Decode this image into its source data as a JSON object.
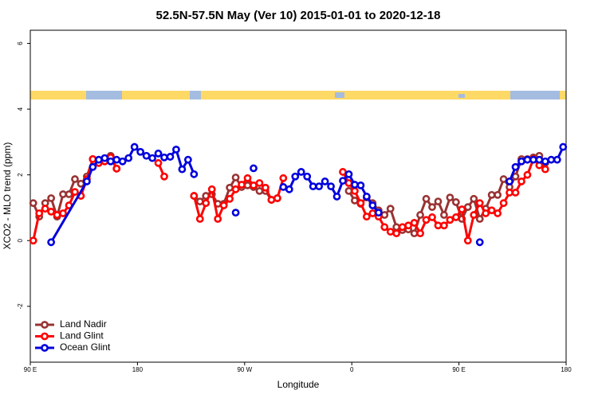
{
  "chart_data": {
    "type": "line",
    "title": "52.5N-57.5N May (Ver 10)   2015-01-01 to 2020-12-18",
    "x_label": "Longitude",
    "y_label": "XCO2 - MLO trend (ppm)",
    "xlim": [
      90,
      540
    ],
    "xticks": [
      {
        "value": 90,
        "label": "90 E"
      },
      180,
      {
        "value": 270,
        "label": "90 W"
      },
      {
        "value": 360,
        "label": "0"
      },
      {
        "value": 450,
        "label": "90 E"
      },
      {
        "value": 540,
        "label": "180"
      }
    ],
    "ylim": [
      -3.7,
      6.4
    ],
    "yticks": [
      -2,
      0,
      2,
      4,
      6
    ],
    "legend": "bottom-left",
    "series": [
      {
        "name": "Land Nadir",
        "color": "#993333",
        "x": [
          92.5,
          97.5,
          102.5,
          107.5,
          112.5,
          117.5,
          122.5,
          127.5,
          132.5,
          137.5,
          142.5,
          147.5,
          152.5,
          157.5,
          162.5,
          null,
          227.5,
          232.5,
          237.5,
          242.5,
          247.5,
          252.5,
          257.5,
          262.5,
          267.5,
          272.5,
          277.5,
          282.5,
          287.5,
          292.5,
          297.5,
          null,
          357.5,
          362.5,
          367.5,
          372.5,
          377.5,
          382.5,
          387.5,
          392.5,
          397.5,
          402.5,
          407.5,
          412.5,
          417.5,
          422.5,
          427.5,
          432.5,
          437.5,
          442.5,
          447.5,
          452.5,
          457.5,
          462.5,
          467.5,
          472.5,
          477.5,
          482.5,
          487.5,
          492.5,
          497.5,
          502.5,
          507.5,
          512.5,
          517.5,
          522.5
        ],
        "values": [
          1.14,
          0.73,
          1.14,
          1.29,
          0.73,
          1.41,
          1.41,
          1.87,
          1.73,
          1.95,
          2.48,
          2.38,
          2.48,
          2.58,
          2.19,
          null,
          1.36,
          1.19,
          1.36,
          1.41,
          1.12,
          1.12,
          1.61,
          1.92,
          1.63,
          1.68,
          1.63,
          1.51,
          1.51,
          1.24,
          1.29,
          null,
          1.51,
          1.22,
          1.12,
          1.31,
          1.14,
          0.92,
          0.78,
          0.97,
          0.41,
          0.32,
          0.34,
          0.22,
          0.78,
          1.27,
          1.02,
          1.19,
          0.78,
          1.31,
          1.17,
          0.66,
          1.02,
          1.27,
          0.66,
          0.97,
          1.39,
          1.39,
          1.87,
          1.63,
          1.95,
          2.48,
          2.48,
          2.53,
          2.58,
          2.36
        ]
      },
      {
        "name": "Land Glint",
        "color": "#ff0000",
        "x": [
          92.5,
          97.5,
          102.5,
          107.5,
          112.5,
          117.5,
          122.5,
          127.5,
          132.5,
          137.5,
          142.5,
          147.5,
          152.5,
          157.5,
          162.5,
          null,
          197.5,
          202.5,
          null,
          227.5,
          232.5,
          237.5,
          242.5,
          247.5,
          252.5,
          257.5,
          262.5,
          267.5,
          272.5,
          277.5,
          282.5,
          287.5,
          292.5,
          297.5,
          302.5,
          null,
          352.5,
          357.5,
          362.5,
          367.5,
          372.5,
          377.5,
          382.5,
          387.5,
          392.5,
          397.5,
          402.5,
          407.5,
          412.5,
          417.5,
          422.5,
          427.5,
          432.5,
          437.5,
          442.5,
          447.5,
          452.5,
          457.5,
          462.5,
          467.5,
          472.5,
          477.5,
          482.5,
          487.5,
          492.5,
          497.5,
          502.5,
          507.5,
          512.5,
          517.5,
          522.5
        ],
        "values": [
          0,
          0.83,
          0.97,
          0.88,
          0.78,
          0.83,
          1.07,
          1.48,
          1.36,
          1.87,
          2.48,
          2.36,
          2.41,
          2.53,
          2.19,
          null,
          2.36,
          1.95,
          null,
          1.36,
          0.66,
          1.14,
          1.56,
          0.66,
          1.07,
          1.27,
          1.56,
          1.7,
          1.9,
          1.68,
          1.75,
          1.61,
          1.24,
          1.29,
          1.9,
          null,
          2.09,
          1.75,
          1.51,
          1.14,
          0.73,
          0.83,
          0.73,
          0.41,
          0.27,
          0.22,
          0.41,
          0.46,
          0.54,
          0.22,
          0.63,
          0.71,
          0.46,
          0.46,
          0.63,
          0.71,
          0.95,
          0,
          0.78,
          1.14,
          0.83,
          0.92,
          0.83,
          1.14,
          1.46,
          1.46,
          1.8,
          2,
          2.48,
          2.29,
          2.17
        ]
      },
      {
        "name": "Ocean Glint",
        "color": "#0000dd",
        "x": [
          107.5,
          137.5,
          142.5,
          147.5,
          152.5,
          157.5,
          162.5,
          167.5,
          172.5,
          177.5,
          182.5,
          187.5,
          192.5,
          197.5,
          202.5,
          207.5,
          212.5,
          217.5,
          222.5,
          227.5,
          null,
          262.5,
          null,
          277.5,
          null,
          302.5,
          307.5,
          312.5,
          317.5,
          322.5,
          327.5,
          332.5,
          337.5,
          342.5,
          347.5,
          352.5,
          357.5,
          362.5,
          367.5,
          372.5,
          377.5,
          382.5,
          null,
          467.5,
          null,
          492.5,
          497.5,
          502.5,
          507.5,
          512.5,
          517.5,
          522.5,
          527.5,
          532.5,
          537.5
        ],
        "values": [
          -0.05,
          1.8,
          2.24,
          2.46,
          2.51,
          2.41,
          2.46,
          2.41,
          2.51,
          2.85,
          2.7,
          2.58,
          2.51,
          2.65,
          2.53,
          2.55,
          2.77,
          2.17,
          2.46,
          2.02,
          null,
          0.85,
          null,
          2.2,
          null,
          1.63,
          1.56,
          1.95,
          2.09,
          1.95,
          1.65,
          1.65,
          1.8,
          1.65,
          1.34,
          1.82,
          2.02,
          1.7,
          1.68,
          1.34,
          1.07,
          0.85,
          null,
          -0.05,
          null,
          1.8,
          2.24,
          2.41,
          2.46,
          2.46,
          2.46,
          2.41,
          2.46,
          2.46,
          2.85
        ]
      }
    ]
  }
}
